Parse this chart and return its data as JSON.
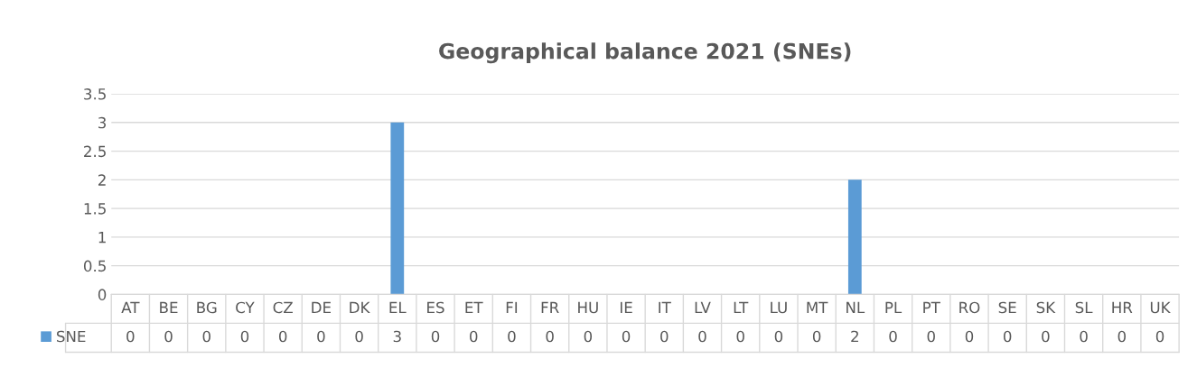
{
  "chart_data": {
    "type": "bar",
    "title": "Geographical balance 2021 (SNEs)",
    "categories": [
      "AT",
      "BE",
      "BG",
      "CY",
      "CZ",
      "DE",
      "DK",
      "EL",
      "ES",
      "ET",
      "FI",
      "FR",
      "HU",
      "IE",
      "IT",
      "LV",
      "LT",
      "LU",
      "MT",
      "NL",
      "PL",
      "PT",
      "RO",
      "SE",
      "SK",
      "SL",
      "HR",
      "UK"
    ],
    "series": [
      {
        "name": "SNE",
        "color": "#5b9bd5",
        "values": [
          0,
          0,
          0,
          0,
          0,
          0,
          0,
          3,
          0,
          0,
          0,
          0,
          0,
          0,
          0,
          0,
          0,
          0,
          0,
          2,
          0,
          0,
          0,
          0,
          0,
          0,
          0,
          0
        ]
      }
    ],
    "ylim": [
      0,
      3.5
    ],
    "yticks": [
      0,
      0.5,
      1,
      1.5,
      2,
      2.5,
      3,
      3.5
    ],
    "grid": "y",
    "data_labels": true,
    "legend": "bottom"
  }
}
